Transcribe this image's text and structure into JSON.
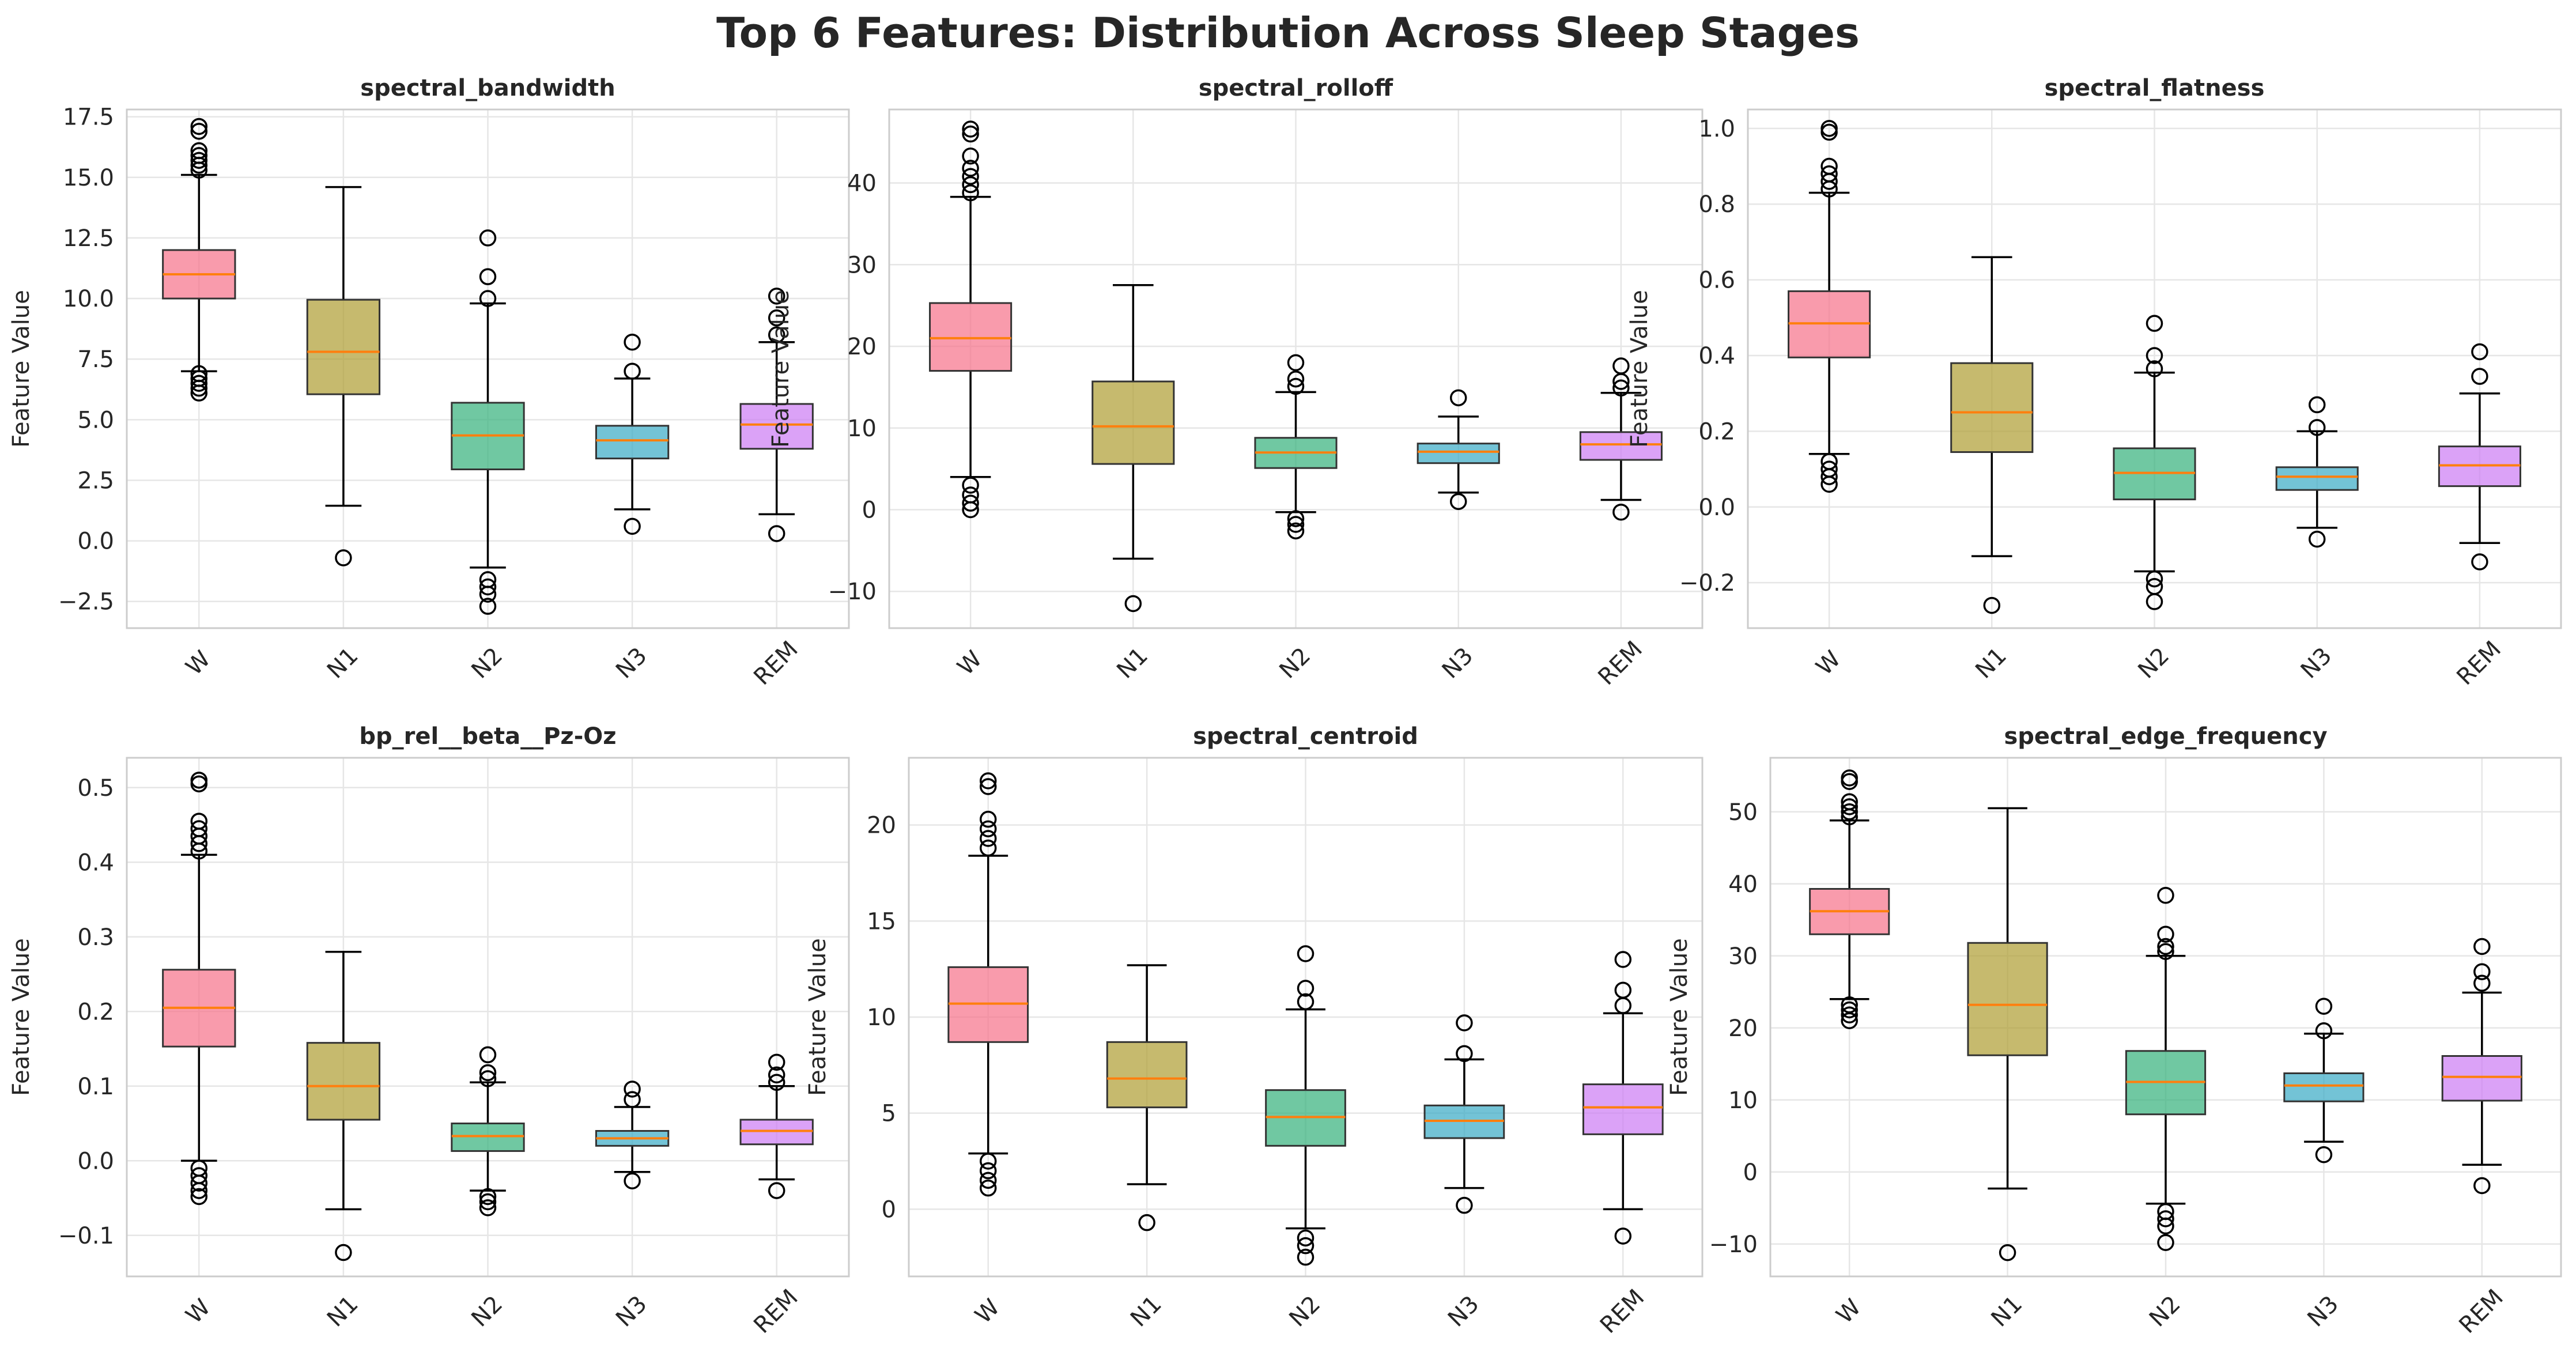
{
  "title": "Top 6 Features: Distribution Across Sleep Stages",
  "ylabel": "Feature Value",
  "categories": [
    "W",
    "N1",
    "N2",
    "N3",
    "REM"
  ],
  "colors": [
    "#f77189",
    "#ae9d31",
    "#33b07a",
    "#38a9c5",
    "#cc7af4"
  ],
  "median_color": "#ff7f0e",
  "chart_data": [
    {
      "type": "box",
      "title": "spectral_bandwidth",
      "ylim": [
        -3.6,
        17.8
      ],
      "yticks": [
        -2.5,
        0.0,
        2.5,
        5.0,
        7.5,
        10.0,
        12.5,
        15.0,
        17.5
      ],
      "boxes": [
        {
          "category": "W",
          "whislo": 7.0,
          "q1": 10.0,
          "med": 11.0,
          "q3": 12.0,
          "whishi": 15.1,
          "fliers": [
            6.1,
            6.3,
            6.5,
            6.7,
            6.9,
            15.3,
            15.5,
            15.7,
            15.9,
            16.1,
            16.9,
            17.1
          ]
        },
        {
          "category": "N1",
          "whislo": 1.45,
          "q1": 6.05,
          "med": 7.8,
          "q3": 9.95,
          "whishi": 14.6,
          "fliers": [
            -0.7
          ]
        },
        {
          "category": "N2",
          "whislo": -1.1,
          "q1": 2.95,
          "med": 4.35,
          "q3": 5.7,
          "whishi": 9.8,
          "fliers": [
            -2.7,
            -2.2,
            -1.9,
            -1.6,
            10.0,
            10.9,
            12.5
          ]
        },
        {
          "category": "N3",
          "whislo": 1.3,
          "q1": 3.4,
          "med": 4.15,
          "q3": 4.75,
          "whishi": 6.7,
          "fliers": [
            0.6,
            7.0,
            8.2
          ]
        },
        {
          "category": "REM",
          "whislo": 1.1,
          "q1": 3.8,
          "med": 4.8,
          "q3": 5.65,
          "whishi": 8.2,
          "fliers": [
            0.3,
            8.5,
            9.2,
            10.1
          ]
        }
      ]
    },
    {
      "type": "box",
      "title": "spectral_rolloff",
      "ylim": [
        -14.5,
        49.0
      ],
      "yticks": [
        -10,
        0,
        10,
        20,
        30,
        40
      ],
      "boxes": [
        {
          "category": "W",
          "whislo": 4.0,
          "q1": 17.0,
          "med": 21.0,
          "q3": 25.3,
          "whishi": 38.3,
          "fliers": [
            0.0,
            0.8,
            1.8,
            3.0,
            38.8,
            39.8,
            40.8,
            41.8,
            43.3,
            46.0,
            46.6
          ]
        },
        {
          "category": "N1",
          "whislo": -6.0,
          "q1": 5.6,
          "med": 10.2,
          "q3": 15.7,
          "whishi": 27.5,
          "fliers": [
            -11.5
          ]
        },
        {
          "category": "N2",
          "whislo": -0.3,
          "q1": 5.1,
          "med": 7.0,
          "q3": 8.8,
          "whishi": 14.4,
          "fliers": [
            -2.6,
            -1.8,
            -1.1,
            15.1,
            16.0,
            18.0
          ]
        },
        {
          "category": "N3",
          "whislo": 2.1,
          "q1": 5.7,
          "med": 7.1,
          "q3": 8.1,
          "whishi": 11.4,
          "fliers": [
            1.0,
            13.7
          ]
        },
        {
          "category": "REM",
          "whislo": 1.2,
          "q1": 6.1,
          "med": 8.0,
          "q3": 9.5,
          "whishi": 14.3,
          "fliers": [
            -0.3,
            14.9,
            15.7,
            17.6
          ]
        }
      ]
    },
    {
      "type": "box",
      "title": "spectral_flatness",
      "ylim": [
        -0.32,
        1.05
      ],
      "yticks": [
        -0.2,
        0.0,
        0.2,
        0.4,
        0.6,
        0.8,
        1.0
      ],
      "boxes": [
        {
          "category": "W",
          "whislo": 0.14,
          "q1": 0.395,
          "med": 0.485,
          "q3": 0.57,
          "whishi": 0.83,
          "fliers": [
            0.06,
            0.08,
            0.1,
            0.12,
            0.84,
            0.86,
            0.88,
            0.9,
            0.99,
            1.0
          ]
        },
        {
          "category": "N1",
          "whislo": -0.13,
          "q1": 0.145,
          "med": 0.25,
          "q3": 0.38,
          "whishi": 0.66,
          "fliers": [
            -0.26
          ]
        },
        {
          "category": "N2",
          "whislo": -0.17,
          "q1": 0.02,
          "med": 0.09,
          "q3": 0.155,
          "whishi": 0.355,
          "fliers": [
            -0.25,
            -0.21,
            -0.19,
            0.365,
            0.4,
            0.485
          ]
        },
        {
          "category": "N3",
          "whislo": -0.055,
          "q1": 0.045,
          "med": 0.08,
          "q3": 0.105,
          "whishi": 0.2,
          "fliers": [
            -0.085,
            0.21,
            0.27
          ]
        },
        {
          "category": "REM",
          "whislo": -0.095,
          "q1": 0.055,
          "med": 0.11,
          "q3": 0.16,
          "whishi": 0.3,
          "fliers": [
            -0.145,
            0.345,
            0.41
          ]
        }
      ]
    },
    {
      "type": "box",
      "title": "bp_rel__beta__Pz-Oz",
      "ylim": [
        -0.155,
        0.54
      ],
      "yticks": [
        -0.1,
        0.0,
        0.1,
        0.2,
        0.3,
        0.4,
        0.5
      ],
      "boxes": [
        {
          "category": "W",
          "whislo": 0.0,
          "q1": 0.153,
          "med": 0.205,
          "q3": 0.256,
          "whishi": 0.41,
          "fliers": [
            -0.048,
            -0.04,
            -0.03,
            -0.02,
            -0.01,
            0.415,
            0.425,
            0.435,
            0.445,
            0.455,
            0.505,
            0.51
          ]
        },
        {
          "category": "N1",
          "whislo": -0.065,
          "q1": 0.055,
          "med": 0.1,
          "q3": 0.158,
          "whishi": 0.28,
          "fliers": [
            -0.123
          ]
        },
        {
          "category": "N2",
          "whislo": -0.04,
          "q1": 0.013,
          "med": 0.033,
          "q3": 0.05,
          "whishi": 0.105,
          "fliers": [
            -0.063,
            -0.055,
            -0.048,
            0.11,
            0.118,
            0.142
          ]
        },
        {
          "category": "N3",
          "whislo": -0.015,
          "q1": 0.02,
          "med": 0.03,
          "q3": 0.04,
          "whishi": 0.072,
          "fliers": [
            -0.027,
            0.082,
            0.096
          ]
        },
        {
          "category": "REM",
          "whislo": -0.025,
          "q1": 0.022,
          "med": 0.04,
          "q3": 0.055,
          "whishi": 0.1,
          "fliers": [
            -0.04,
            0.105,
            0.115,
            0.132
          ]
        }
      ]
    },
    {
      "type": "box",
      "title": "spectral_centroid",
      "ylim": [
        -3.5,
        23.5
      ],
      "yticks": [
        0,
        5,
        10,
        15,
        20
      ],
      "boxes": [
        {
          "category": "W",
          "whislo": 2.9,
          "q1": 8.7,
          "med": 10.7,
          "q3": 12.6,
          "whishi": 18.4,
          "fliers": [
            1.1,
            1.5,
            2.0,
            2.5,
            18.8,
            19.3,
            19.8,
            20.3,
            22.0,
            22.3
          ]
        },
        {
          "category": "N1",
          "whislo": 1.3,
          "q1": 5.3,
          "med": 6.8,
          "q3": 8.7,
          "whishi": 12.7,
          "fliers": [
            -0.7
          ]
        },
        {
          "category": "N2",
          "whislo": -1.0,
          "q1": 3.3,
          "med": 4.8,
          "q3": 6.2,
          "whishi": 10.4,
          "fliers": [
            -2.5,
            -1.9,
            -1.5,
            10.8,
            11.5,
            13.3
          ]
        },
        {
          "category": "N3",
          "whislo": 1.1,
          "q1": 3.7,
          "med": 4.6,
          "q3": 5.4,
          "whishi": 7.8,
          "fliers": [
            0.2,
            8.1,
            9.7
          ]
        },
        {
          "category": "REM",
          "whislo": 0.0,
          "q1": 3.9,
          "med": 5.3,
          "q3": 6.5,
          "whishi": 10.2,
          "fliers": [
            -1.4,
            10.6,
            11.4,
            13.0
          ]
        }
      ]
    },
    {
      "type": "box",
      "title": "spectral_edge_frequency",
      "ylim": [
        -14.5,
        57.5
      ],
      "yticks": [
        -10,
        0,
        10,
        20,
        30,
        40,
        50
      ],
      "boxes": [
        {
          "category": "W",
          "whislo": 24.0,
          "q1": 33.0,
          "med": 36.2,
          "q3": 39.3,
          "whishi": 48.8,
          "fliers": [
            21.0,
            21.8,
            22.5,
            23.2,
            49.3,
            50.0,
            50.7,
            51.4,
            54.2,
            54.7
          ]
        },
        {
          "category": "N1",
          "whislo": -2.3,
          "q1": 16.2,
          "med": 23.2,
          "q3": 31.8,
          "whishi": 50.5,
          "fliers": [
            -11.2
          ]
        },
        {
          "category": "N2",
          "whislo": -4.4,
          "q1": 8.0,
          "med": 12.5,
          "q3": 16.8,
          "whishi": 30.0,
          "fliers": [
            -9.8,
            -7.5,
            -6.5,
            -5.5,
            30.6,
            31.3,
            33.0,
            38.4
          ]
        },
        {
          "category": "N3",
          "whislo": 4.2,
          "q1": 9.8,
          "med": 12.0,
          "q3": 13.7,
          "whishi": 19.2,
          "fliers": [
            2.4,
            19.6,
            23.0
          ]
        },
        {
          "category": "REM",
          "whislo": 1.0,
          "q1": 9.9,
          "med": 13.2,
          "q3": 16.1,
          "whishi": 24.9,
          "fliers": [
            -1.9,
            26.2,
            27.8,
            31.3
          ]
        }
      ]
    }
  ]
}
